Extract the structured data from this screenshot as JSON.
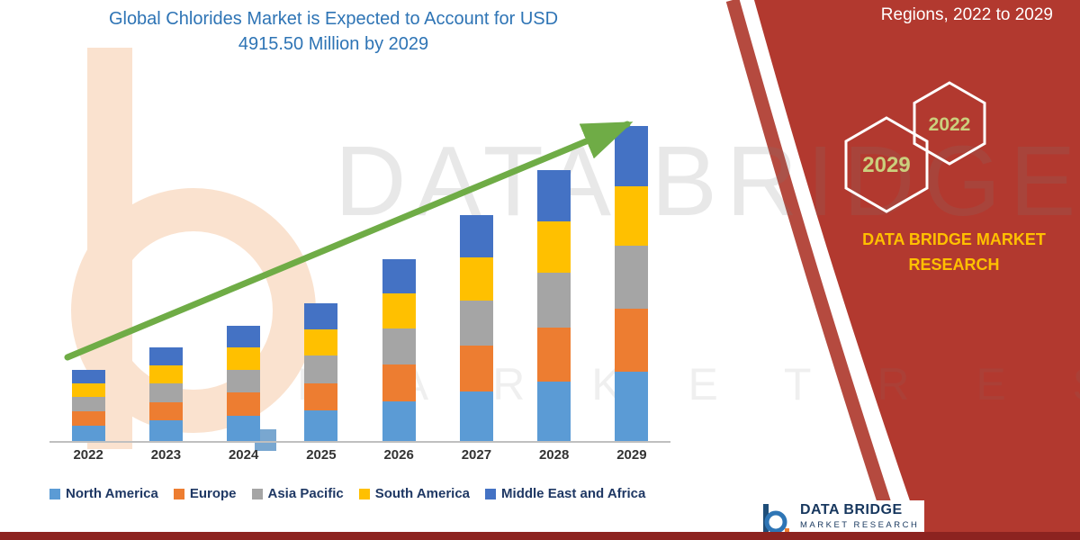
{
  "title": {
    "line1": "Global Chlorides Market is Expected to Account for USD",
    "line2": "4915.50 Million by 2029"
  },
  "right_panel": {
    "top_text": "Regions, 2022 to 2029",
    "hex_left": "2029",
    "hex_right": "2022",
    "brand_line1": "DATA BRIDGE MARKET",
    "brand_line2": "RESEARCH",
    "accent_red": "#B2392F",
    "hex_year_color": "#CBCF7D",
    "brand_yellow": "#FFC000"
  },
  "watermark": {
    "line1": "DATA BRIDGE",
    "line2": "M A R K E T   R E S E A R C H"
  },
  "footer_logo": {
    "name": "DATA BRIDGE",
    "sub": "MARKET RESEARCH"
  },
  "footer_bar_color": "#8C2320",
  "title_color": "#2E74B5",
  "arrow_color": "#6FAC46",
  "chart_data": {
    "type": "bar",
    "stacked": true,
    "title": "Global Chlorides Market is Expected to Account for USD 4915.50 Million by 2029",
    "unit": "USD Million",
    "categories": [
      "2022",
      "2023",
      "2024",
      "2025",
      "2026",
      "2027",
      "2028",
      "2029"
    ],
    "series": [
      {
        "name": "North America",
        "color": "#5B9BD5",
        "values": [
          244,
          320,
          396,
          472,
          625,
          777,
          930,
          1081
        ]
      },
      {
        "name": "Europe",
        "color": "#ED7D31",
        "values": [
          222,
          291,
          360,
          429,
          568,
          706,
          845,
          983
        ]
      },
      {
        "name": "Asia Pacific",
        "color": "#A5A5A5",
        "values": [
          222,
          291,
          360,
          429,
          568,
          706,
          845,
          983
        ]
      },
      {
        "name": "South America",
        "color": "#FFC000",
        "values": [
          211,
          276,
          342,
          408,
          540,
          671,
          803,
          934
        ]
      },
      {
        "name": "Middle East and Africa",
        "color": "#4472C4",
        "values": [
          211,
          277,
          342,
          407,
          539,
          670,
          802,
          934.5
        ]
      }
    ],
    "totals": [
      1110,
      1455,
      1800,
      2145,
      2840,
      3530,
      4225,
      4915.5
    ],
    "ylim": [
      0,
      5000
    ],
    "grid": false,
    "legend_position": "bottom",
    "trend_arrow": true
  }
}
